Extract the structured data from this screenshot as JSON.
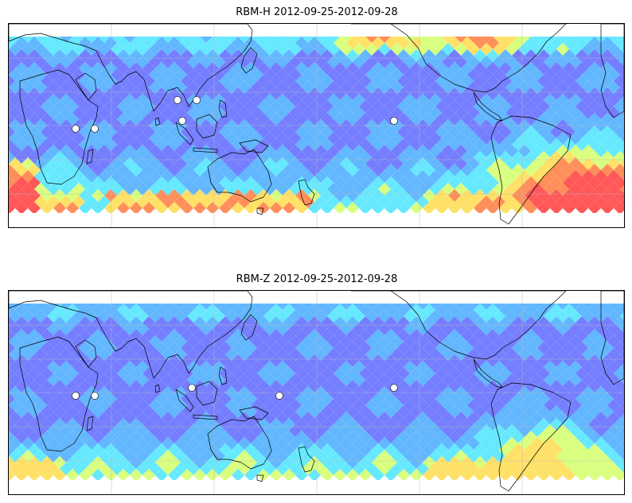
{
  "panels": [
    {
      "title": "RBM-H 2012-09-25-2012-09-28",
      "field": "rbm-h",
      "colormap": [
        "#5a64ff",
        "#6e78ff",
        "#5ab4ff",
        "#5ee8ff",
        "#d8ff7a",
        "#ffe060",
        "#ff8a52",
        "#ff5050"
      ]
    },
    {
      "title": "RBM-Z 2012-09-25-2012-09-28",
      "field": "rbm-z",
      "colormap": [
        "#5a64ff",
        "#6e78ff",
        "#5ab4ff",
        "#5ee8ff",
        "#d8ff7a",
        "#ffe060",
        "#ff8a52",
        "#ff5050"
      ]
    }
  ]
}
